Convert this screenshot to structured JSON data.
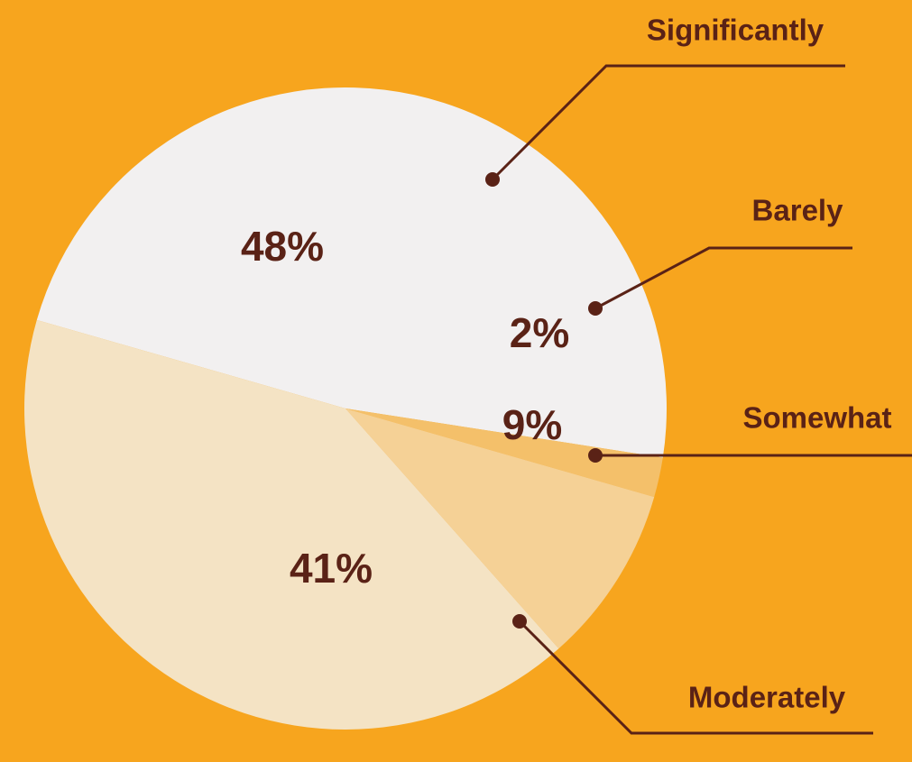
{
  "colors": {
    "background": "#F7A51E",
    "ink": "#5A2216"
  },
  "chart_data": {
    "type": "pie",
    "title": "",
    "slices": [
      {
        "label": "Significantly",
        "value": 48,
        "value_label": "48%",
        "color": "#F2F0F0"
      },
      {
        "label": "Barely",
        "value": 2,
        "value_label": "2%",
        "color": "#F4C06A"
      },
      {
        "label": "Somewhat",
        "value": 9,
        "value_label": "9%",
        "color": "#F5D196"
      },
      {
        "label": "Moderately",
        "value": 41,
        "value_label": "41%",
        "color": "#F4E3C4"
      }
    ]
  }
}
